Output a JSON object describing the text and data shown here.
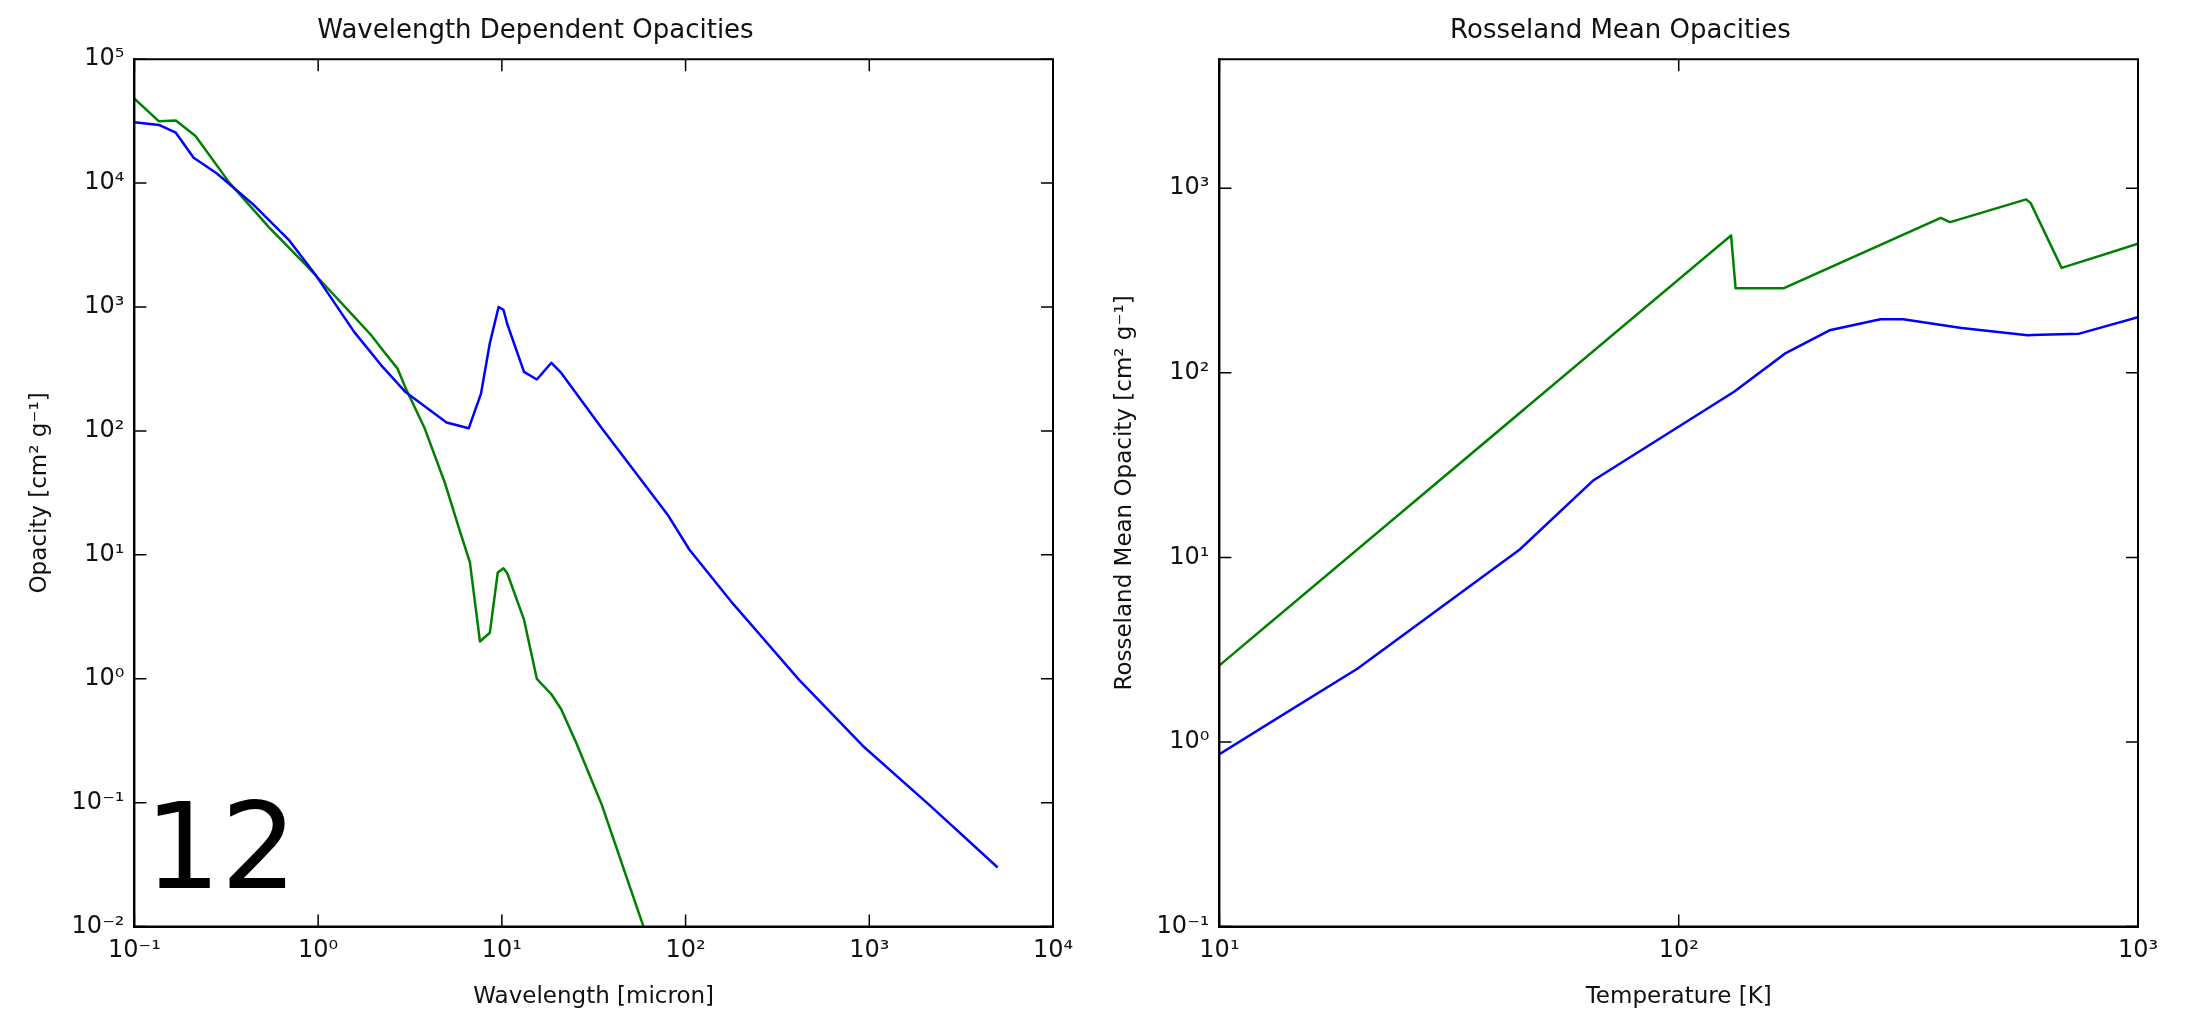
{
  "chart_data": [
    {
      "type": "line",
      "title": "Wavelength Dependent Opacities",
      "xlabel": "Wavelength [micron]",
      "ylabel": "Opacity [cm² g⁻¹]",
      "log": "xy",
      "xlim": [
        0.1,
        10000
      ],
      "ylim": [
        0.01,
        100000
      ],
      "xticks": [
        {
          "value": 0.1,
          "label": "10⁻¹"
        },
        {
          "value": 1,
          "label": "10⁰"
        },
        {
          "value": 10,
          "label": "10¹"
        },
        {
          "value": 100,
          "label": "10²"
        },
        {
          "value": 1000,
          "label": "10³"
        },
        {
          "value": 10000,
          "label": "10⁴"
        }
      ],
      "yticks": [
        {
          "value": 0.01,
          "label": "10⁻²"
        },
        {
          "value": 0.1,
          "label": "10⁻¹"
        },
        {
          "value": 1,
          "label": "10⁰"
        },
        {
          "value": 10,
          "label": "10¹"
        },
        {
          "value": 100,
          "label": "10²"
        },
        {
          "value": 1000,
          "label": "10³"
        },
        {
          "value": 10000,
          "label": "10⁴"
        },
        {
          "value": 100000,
          "label": "10⁵"
        }
      ],
      "annotations": [
        "12"
      ],
      "series": [
        {
          "color": "#0000ff",
          "x": [
            0.1,
            0.136,
            0.168,
            0.21,
            0.28,
            0.44,
            0.69,
            0.96,
            1.57,
            2.2,
            3.0,
            5.0,
            6.6,
            7.7,
            8.6,
            9.6,
            10.2,
            10.7,
            13.2,
            15.5,
            18.6,
            21,
            35,
            80,
            105,
            182,
            415,
            940,
            2120,
            5000
          ],
          "values": [
            31000,
            29500,
            25500,
            16000,
            12000,
            6800,
            3500,
            1850,
            630,
            340,
            205,
            117,
            105,
            200,
            510,
            1000,
            950,
            730,
            300,
            260,
            355,
            295,
            105,
            21,
            11,
            4.0,
            0.98,
            0.28,
            0.096,
            0.03
          ]
        },
        {
          "color": "#008000",
          "x": [
            0.1,
            0.136,
            0.168,
            0.215,
            0.33,
            0.54,
            0.88,
            1.22,
            1.45,
            1.93,
            2.3,
            2.7,
            3.0,
            3.8,
            4.9,
            5.8,
            6.7,
            7.6,
            8.6,
            9.5,
            10.2,
            10.7,
            13.2,
            15.5,
            18.6,
            21,
            25.5,
            35,
            59
          ],
          "values": [
            48000,
            31500,
            32000,
            24000,
            10000,
            4400,
            2100,
            1250,
            950,
            600,
            430,
            320,
            220,
            105,
            38,
            17,
            8.7,
            2.0,
            2.35,
            7.2,
            7.8,
            7.1,
            3.0,
            1.0,
            0.75,
            0.57,
            0.3,
            0.096,
            0.01
          ]
        }
      ]
    },
    {
      "type": "line",
      "title": "Rosseland Mean Opacities",
      "xlabel": "Temperature [K]",
      "ylabel": "Rosseland Mean Opacity [cm² g⁻¹]",
      "log": "xy",
      "xlim": [
        10,
        1000
      ],
      "ylim": [
        0.1,
        5000
      ],
      "xticks": [
        {
          "value": 10,
          "label": "10¹"
        },
        {
          "value": 100,
          "label": "10²"
        },
        {
          "value": 1000,
          "label": "10³"
        }
      ],
      "yticks": [
        {
          "value": 0.1,
          "label": "10⁻¹"
        },
        {
          "value": 1,
          "label": "10⁰"
        },
        {
          "value": 10,
          "label": "10¹"
        },
        {
          "value": 100,
          "label": "10²"
        },
        {
          "value": 1000,
          "label": "10³"
        }
      ],
      "series": [
        {
          "color": "#008000",
          "x": [
            10,
            130,
            133,
            169,
            372,
            384,
            390,
            571,
            584,
            682,
            1000
          ],
          "values": [
            2.6,
            555,
            287,
            287,
            690,
            665,
            655,
            870,
            830,
            370,
            500
          ]
        },
        {
          "color": "#0000ff",
          "x": [
            10,
            20,
            45,
            65,
            132,
            171,
            213,
            275,
            308,
            413,
            575,
            745,
            1000
          ],
          "values": [
            0.86,
            2.5,
            11,
            26,
            79,
            128,
            170,
            195,
            195,
            175,
            160,
            163,
            200
          ]
        }
      ]
    }
  ]
}
